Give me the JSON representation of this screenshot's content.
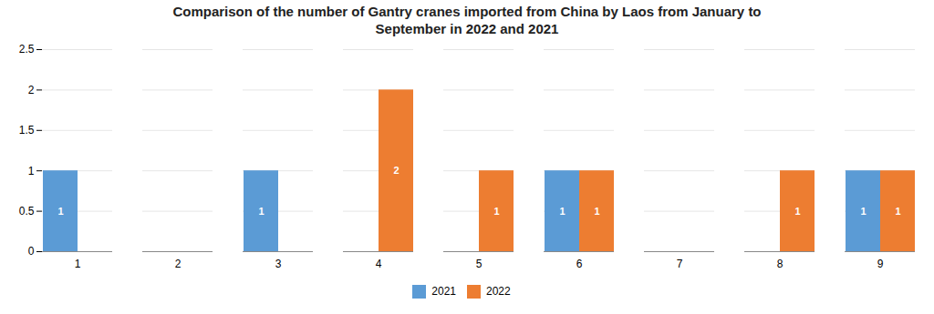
{
  "chart_data": {
    "type": "bar",
    "title": "Comparison of the number of Gantry cranes imported from China by Laos from January to\nSeptember in 2022 and 2021",
    "categories": [
      "1",
      "2",
      "3",
      "4",
      "5",
      "6",
      "7",
      "8",
      "9"
    ],
    "series": [
      {
        "name": "2021",
        "color": "#5B9BD5",
        "values": [
          1,
          0,
          1,
          0,
          0,
          1,
          0,
          0,
          1
        ]
      },
      {
        "name": "2022",
        "color": "#ED7D31",
        "values": [
          0,
          0,
          0,
          2,
          1,
          1,
          0,
          1,
          1
        ]
      }
    ],
    "ylim": [
      0,
      2.5
    ],
    "yticks": [
      0,
      0.5,
      1,
      1.5,
      2,
      2.5
    ],
    "grid": true,
    "legend": "bottom",
    "data_labels": true
  }
}
